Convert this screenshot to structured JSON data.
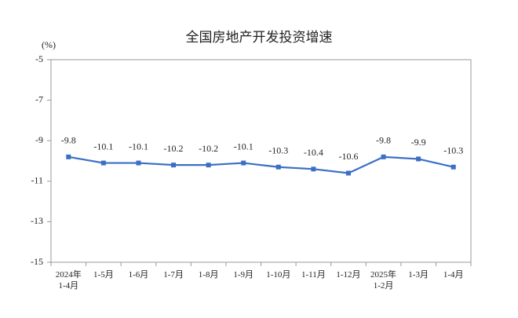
{
  "chart_data": {
    "type": "line",
    "title": "全国房地产开发投资增速",
    "y_unit": "(%)",
    "categories": [
      "2024年\n1-4月",
      "1-5月",
      "1-6月",
      "1-7月",
      "1-8月",
      "1-9月",
      "1-10月",
      "1-11月",
      "1-12月",
      "2025年\n1-2月",
      "1-3月",
      "1-4月"
    ],
    "values": [
      -9.8,
      -10.1,
      -10.1,
      -10.2,
      -10.2,
      -10.1,
      -10.3,
      -10.4,
      -10.6,
      -9.8,
      -9.9,
      -10.3
    ],
    "color": "#3b6fc6",
    "ylim": [
      -15,
      -5
    ],
    "yticks": [
      -5,
      -7,
      -9,
      -11,
      -13,
      -15
    ]
  }
}
